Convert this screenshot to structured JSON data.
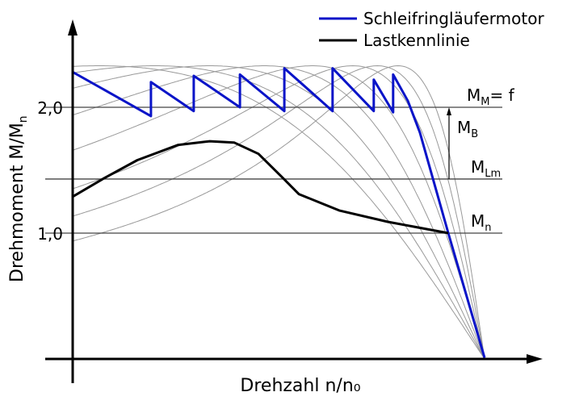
{
  "chart_data": {
    "type": "line",
    "xlabel": "Drehzahl n/n₀",
    "ylabel_main": "Drehmoment M/M",
    "ylabel_sub": "n",
    "xlim": [
      0,
      1
    ],
    "ylim": [
      0,
      2.6
    ],
    "yticks": [
      {
        "value": 2.0,
        "label": "2,0"
      },
      {
        "value": 1.0,
        "label": "1,0"
      }
    ],
    "reference_lines": [
      {
        "value": 2.0,
        "label": "M",
        "sub": "M",
        "suffix": "= f"
      },
      {
        "value": 1.43,
        "label": "M",
        "sub": "Lm",
        "suffix": ""
      },
      {
        "value": 1.0,
        "label": "M",
        "sub": "n",
        "suffix": ""
      }
    ],
    "arrow_label": {
      "label": "M",
      "sub": "B"
    },
    "legend": [
      {
        "name": "Schleifringläufermotor",
        "color": "#0a14c8"
      },
      {
        "name": "Lastkennlinie",
        "color": "#000000"
      }
    ],
    "stage_curves": {
      "color": "#999999",
      "peak_torque": 2.33,
      "slip_at_peak": [
        0.935,
        0.8,
        0.667,
        0.535,
        0.418,
        0.32,
        0.26,
        0.21
      ]
    },
    "series": [
      {
        "name": "Schleifringläufermotor",
        "color": "#0a14c8",
        "x": [
          0,
          0.19,
          0.19,
          0.294,
          0.294,
          0.406,
          0.406,
          0.514,
          0.514,
          0.631,
          0.631,
          0.731,
          0.731,
          0.778,
          0.778,
          0.814,
          0.843,
          0.912,
          1.0
        ],
        "y": [
          2.28,
          1.93,
          2.2,
          1.97,
          2.25,
          2.0,
          2.26,
          1.97,
          2.31,
          1.97,
          2.31,
          1.97,
          2.22,
          1.96,
          2.26,
          2.05,
          1.8,
          1.0,
          0.01
        ]
      },
      {
        "name": "Lastkennlinie",
        "color": "#000000",
        "x": [
          0,
          0.078,
          0.157,
          0.255,
          0.333,
          0.392,
          0.451,
          0.51,
          0.549,
          0.647,
          0.765,
          0.912
        ],
        "y": [
          1.29,
          1.44,
          1.58,
          1.7,
          1.73,
          1.72,
          1.63,
          1.44,
          1.31,
          1.18,
          1.09,
          1.0
        ]
      }
    ]
  }
}
